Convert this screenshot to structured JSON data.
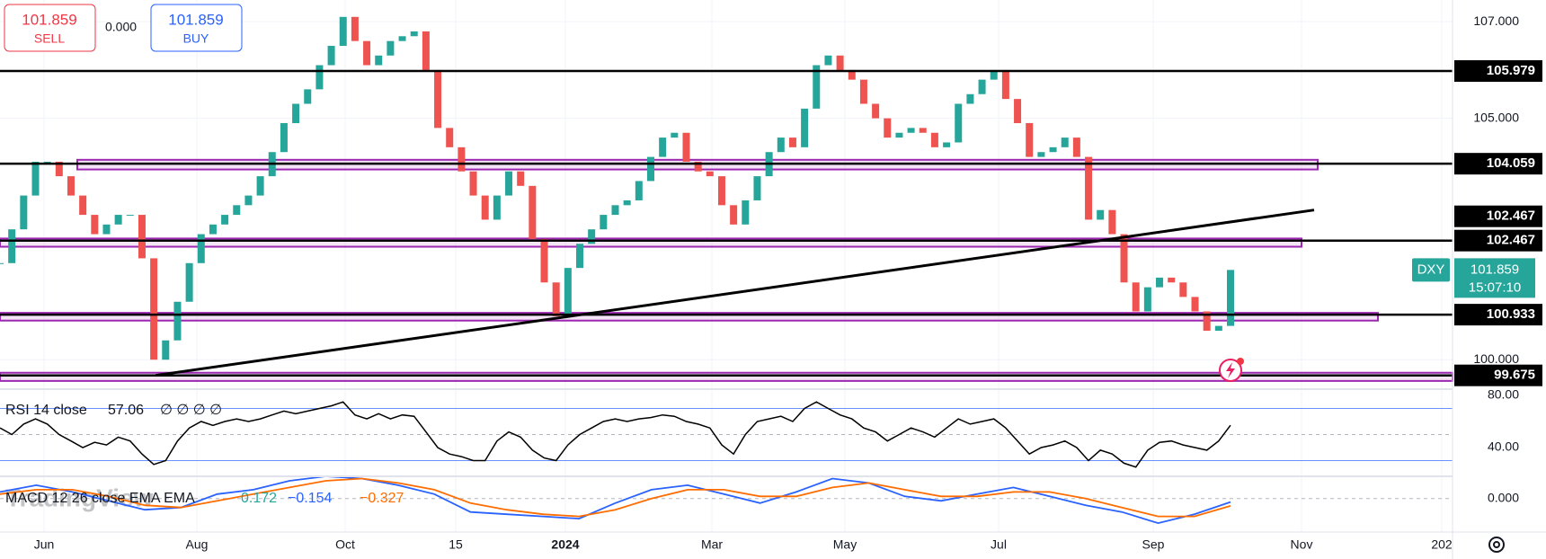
{
  "toolbar": {
    "sell": {
      "price": "101.859",
      "label": "SELL"
    },
    "spread": "0.000",
    "buy": {
      "price": "101.859",
      "label": "BUY"
    }
  },
  "chart_data": {
    "type": "candlestick",
    "symbol": "DXY",
    "values": [
      102.0,
      102.7,
      103.4,
      104.1,
      104.1,
      103.8,
      103.4,
      103.0,
      102.6,
      102.8,
      103.0,
      103.0,
      102.1,
      100.0,
      100.4,
      101.2,
      102.0,
      102.6,
      102.8,
      103.0,
      103.2,
      103.4,
      103.8,
      104.3,
      104.9,
      105.3,
      105.6,
      106.1,
      106.5,
      107.1,
      106.6,
      106.1,
      106.3,
      106.6,
      106.7,
      106.8,
      106.0,
      104.8,
      104.4,
      103.9,
      103.4,
      102.9,
      103.4,
      103.9,
      103.6,
      102.5,
      101.6,
      100.9,
      101.9,
      102.4,
      102.7,
      103.0,
      103.2,
      103.3,
      103.7,
      104.2,
      104.6,
      104.7,
      104.1,
      103.9,
      103.8,
      103.2,
      102.8,
      103.3,
      103.8,
      104.3,
      104.6,
      104.4,
      105.2,
      106.1,
      106.3,
      106.0,
      105.8,
      105.3,
      105.0,
      104.6,
      104.7,
      104.8,
      104.7,
      104.4,
      104.5,
      105.3,
      105.5,
      105.8,
      106.0,
      105.4,
      104.9,
      104.2,
      104.3,
      104.4,
      104.6,
      104.2,
      102.9,
      103.1,
      102.6,
      101.6,
      101.0,
      101.5,
      101.7,
      101.6,
      101.3,
      101.0,
      100.6,
      100.7,
      101.859
    ],
    "up_color": "#26a69a",
    "down_color": "#ef5350",
    "ylim": [
      99.39,
      107.45
    ],
    "yticks": [
      {
        "value": 100,
        "label": "100.000"
      },
      {
        "value": 105,
        "label": "105.000"
      },
      {
        "value": 107,
        "label": "107.000"
      }
    ],
    "levels": [
      {
        "value": 105.979,
        "label": "105.979"
      },
      {
        "value": 104.059,
        "label": "104.059"
      },
      {
        "value": 102.467,
        "label": "102.467"
      },
      {
        "value": 102.467,
        "label": "102.467"
      },
      {
        "value": 100.933,
        "label": "100.933"
      },
      {
        "value": 99.675,
        "label": "99.675"
      }
    ],
    "zones": [
      [
        103.94,
        104.14
      ],
      [
        102.34,
        102.51
      ],
      [
        100.81,
        100.97
      ],
      [
        99.56,
        99.73
      ]
    ],
    "zone_color": "#9c27b0",
    "trendline": [
      99.675,
      103.1
    ],
    "last_label": "101.859",
    "countdown": "15:07:10",
    "x_labels": [
      "Jun",
      "Aug",
      "Oct",
      "15",
      "2024",
      "Mar",
      "May",
      "Jul",
      "Sep",
      "Nov",
      "202"
    ]
  },
  "rsi": {
    "title": "RSI 14 close",
    "value_label": "57.06",
    "symbols": "∅ ∅ ∅ ∅",
    "color": "#000000",
    "values": [
      55,
      50,
      58,
      62,
      58,
      50,
      45,
      40,
      44,
      42,
      48,
      45,
      35,
      27,
      30,
      45,
      55,
      60,
      57,
      60,
      62,
      60,
      62,
      65,
      68,
      66,
      68,
      70,
      72,
      75,
      65,
      62,
      66,
      62,
      65,
      64,
      52,
      40,
      35,
      33,
      30,
      30,
      45,
      52,
      48,
      38,
      32,
      30,
      42,
      50,
      55,
      60,
      62,
      60,
      62,
      63,
      65,
      64,
      60,
      58,
      55,
      42,
      35,
      50,
      60,
      62,
      64,
      60,
      70,
      75,
      70,
      65,
      62,
      55,
      52,
      45,
      50,
      55,
      52,
      48,
      55,
      62,
      58,
      60,
      62,
      55,
      45,
      35,
      40,
      42,
      45,
      40,
      30,
      38,
      35,
      28,
      25,
      38,
      44,
      45,
      42,
      40,
      38,
      45,
      57.06
    ],
    "ylim": [
      17.9,
      84.8
    ],
    "yticks": [
      {
        "value": 80,
        "label": "80.00"
      },
      {
        "value": 40,
        "label": "40.00"
      }
    ],
    "bands": [
      70,
      30
    ],
    "middle": 50
  },
  "macd": {
    "title": "MACD 12 26 close EMA EMA",
    "value_texts": [
      "0.172",
      "−0.154",
      "−0.327"
    ],
    "series": [
      {
        "name": "MACD",
        "color": "#2962ff",
        "values": [
          0.3,
          0.6,
          0.3,
          -0.1,
          -0.5,
          -0.4,
          0.2,
          0.4,
          0.8,
          1.0,
          0.9,
          0.6,
          0.2,
          -0.6,
          -0.7,
          -0.8,
          -0.9,
          -0.2,
          0.4,
          0.6,
          0.2,
          -0.2,
          0.3,
          0.9,
          0.7,
          0.1,
          -0.1,
          0.2,
          0.5,
          0.1,
          -0.3,
          -0.6,
          -1.1,
          -0.7,
          -0.154
        ]
      },
      {
        "name": "Signal",
        "color": "#ff6d00",
        "values": [
          0.2,
          0.4,
          0.4,
          0.1,
          -0.3,
          -0.4,
          -0.1,
          0.2,
          0.5,
          0.8,
          0.9,
          0.7,
          0.4,
          -0.2,
          -0.5,
          -0.7,
          -0.8,
          -0.5,
          0.0,
          0.4,
          0.4,
          0.1,
          0.1,
          0.5,
          0.7,
          0.4,
          0.1,
          0.1,
          0.3,
          0.3,
          0.0,
          -0.4,
          -0.8,
          -0.8,
          -0.327
        ]
      }
    ],
    "ylim": [
      -1.5,
      1.0
    ],
    "yticks": [
      {
        "value": 0,
        "label": "0.000"
      }
    ]
  },
  "watermark": "TradingView"
}
